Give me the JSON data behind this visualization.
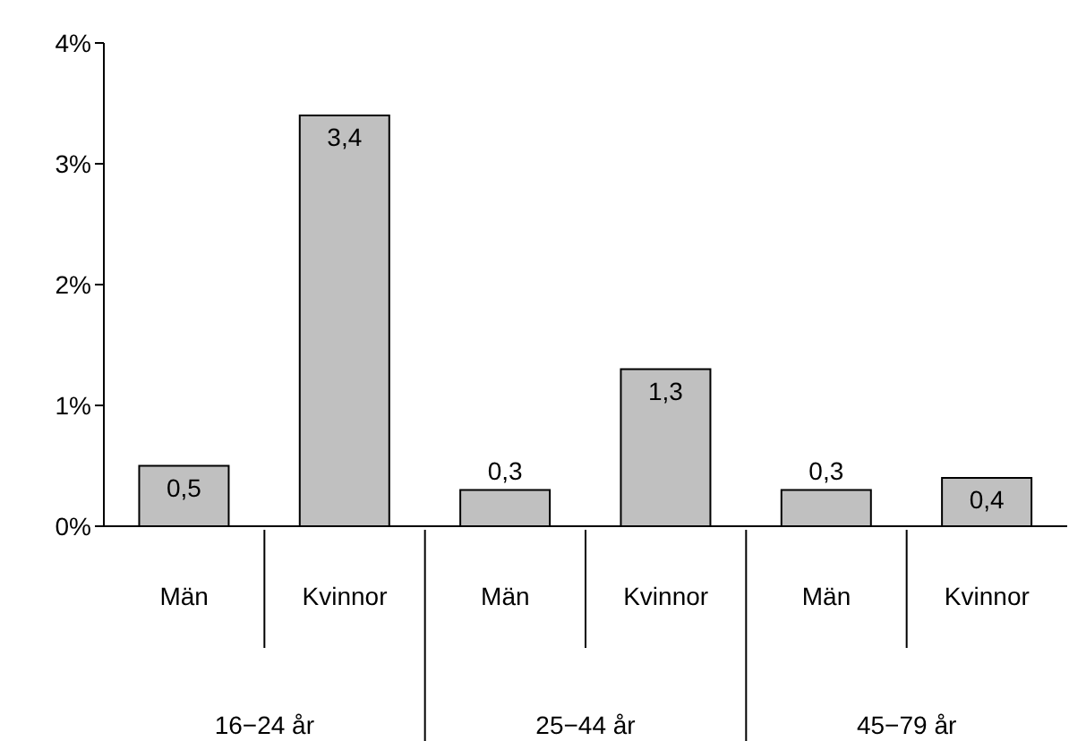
{
  "chart_data": {
    "type": "bar",
    "categories": [
      "Män",
      "Kvinnor",
      "Män",
      "Kvinnor",
      "Män",
      "Kvinnor"
    ],
    "values": [
      0.5,
      3.4,
      0.3,
      1.3,
      0.3,
      0.4
    ],
    "value_labels": [
      "0,5",
      "3,4",
      "0,3",
      "1,3",
      "0,3",
      "0,4"
    ],
    "color": "#c0c0c0",
    "ylim": [
      0,
      4
    ],
    "yticks": [
      {
        "value": 0,
        "label": "0%"
      },
      {
        "value": 1,
        "label": "1%"
      },
      {
        "value": 2,
        "label": "2%"
      },
      {
        "value": 3,
        "label": "3%"
      },
      {
        "value": 4,
        "label": "4%"
      }
    ],
    "annotations": [
      "16−24 år",
      "25−44 år",
      "45−79 år"
    ],
    "grid": false,
    "legend": false
  }
}
